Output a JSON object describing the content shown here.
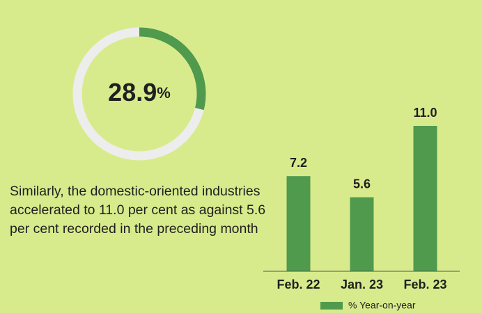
{
  "chart_data": [
    {
      "type": "donut",
      "values": [
        28.9
      ],
      "value_labels": [
        "28.9%"
      ],
      "color": "#4f9a4c",
      "track_color": "#ededed"
    },
    {
      "type": "bar",
      "categories": [
        "Feb. 22",
        "Jan. 23",
        "Feb. 23"
      ],
      "series": [
        {
          "name": "% Year-on-year",
          "color": "#4f9a4c",
          "values": [
            7.2,
            5.6,
            11.0
          ],
          "value_labels": [
            "7.2",
            "5.6",
            "11.0"
          ]
        }
      ]
    }
  ],
  "caption": [
    "Similarly, the domestic-oriented industries",
    "accelerated to 11.0 per cent as against 5.6",
    "per cent recorded in the preceding month"
  ]
}
